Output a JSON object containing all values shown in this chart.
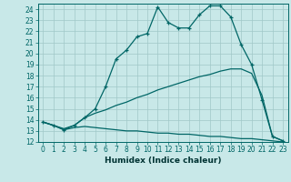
{
  "title": "",
  "xlabel": "Humidex (Indice chaleur)",
  "bg_color": "#c8e8e8",
  "line_color": "#006666",
  "grid_color": "#a0c8c8",
  "xlim": [
    -0.5,
    23.5
  ],
  "ylim": [
    12,
    24.5
  ],
  "xticks": [
    0,
    1,
    2,
    3,
    4,
    5,
    6,
    7,
    8,
    9,
    10,
    11,
    12,
    13,
    14,
    15,
    16,
    17,
    18,
    19,
    20,
    21,
    22,
    23
  ],
  "yticks": [
    12,
    13,
    14,
    15,
    16,
    17,
    18,
    19,
    20,
    21,
    22,
    23,
    24
  ],
  "line1_x": [
    0,
    1,
    2,
    3,
    4,
    5,
    6,
    7,
    8,
    9,
    10,
    11,
    12,
    13,
    14,
    15,
    16,
    17,
    18,
    19,
    20,
    21,
    22,
    23
  ],
  "line1_y": [
    13.8,
    13.5,
    13.1,
    13.5,
    14.2,
    15.0,
    17.0,
    19.5,
    20.3,
    21.5,
    21.8,
    24.2,
    22.8,
    22.3,
    22.3,
    23.5,
    24.3,
    24.3,
    23.3,
    20.8,
    19.0,
    15.8,
    12.5,
    12.1
  ],
  "line2_x": [
    0,
    1,
    2,
    3,
    4,
    5,
    6,
    7,
    8,
    9,
    10,
    11,
    12,
    13,
    14,
    15,
    16,
    17,
    18,
    19,
    20,
    21,
    22,
    23
  ],
  "line2_y": [
    13.8,
    13.5,
    13.2,
    13.5,
    14.2,
    14.6,
    14.9,
    15.3,
    15.6,
    16.0,
    16.3,
    16.7,
    17.0,
    17.3,
    17.6,
    17.9,
    18.1,
    18.4,
    18.6,
    18.6,
    18.2,
    16.2,
    12.5,
    12.1
  ],
  "line3_x": [
    0,
    1,
    2,
    3,
    4,
    5,
    6,
    7,
    8,
    9,
    10,
    11,
    12,
    13,
    14,
    15,
    16,
    17,
    18,
    19,
    20,
    21,
    22,
    23
  ],
  "line3_y": [
    13.8,
    13.5,
    13.1,
    13.3,
    13.4,
    13.3,
    13.2,
    13.1,
    13.0,
    13.0,
    12.9,
    12.8,
    12.8,
    12.7,
    12.7,
    12.6,
    12.5,
    12.5,
    12.4,
    12.3,
    12.3,
    12.2,
    12.1,
    12.0
  ],
  "tick_fontsize": 5.5,
  "xlabel_fontsize": 6.5
}
